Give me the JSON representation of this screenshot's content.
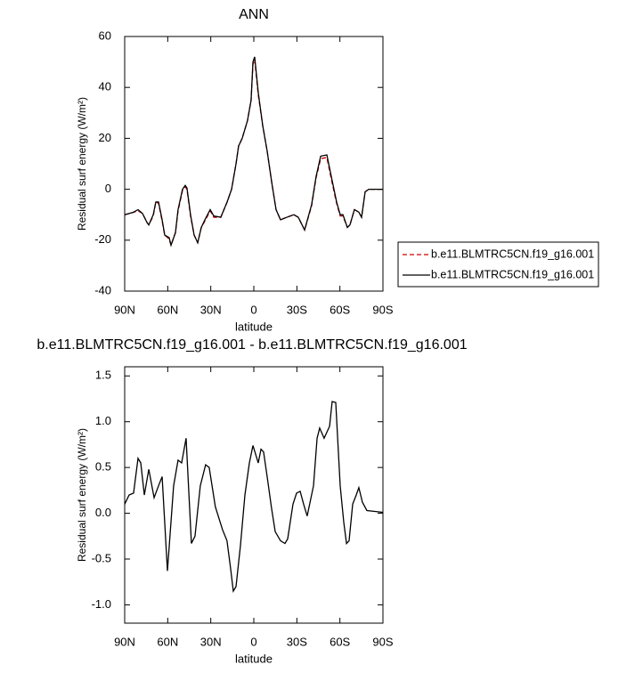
{
  "chart_data": [
    {
      "type": "line",
      "title": "ANN",
      "xlabel": "latitude",
      "ylabel": "Residual surf energy (W/m²)",
      "x": [
        90,
        83.8,
        80.7,
        77.6,
        74.5,
        73.2,
        70.1,
        68.3,
        66.4,
        63.9,
        62.1,
        59,
        57.7,
        54.6,
        52.8,
        49.7,
        47.8,
        46.6,
        44.1,
        41.6,
        39.1,
        36.6,
        34.1,
        30.4,
        27.9,
        23,
        18.6,
        15.5,
        12.4,
        10.6,
        8.1,
        4.4,
        1.9,
        0.6,
        -0.6,
        -3.1,
        -6.2,
        -9.3,
        -12.4,
        -15.5,
        -18.6,
        -23,
        -27.9,
        -31,
        -35.4,
        -40.3,
        -43.4,
        -46.6,
        -50.9,
        -54,
        -57.7,
        -60.2,
        -62.1,
        -65.2,
        -67,
        -70.1,
        -73.2,
        -75.1,
        -77.6,
        -80.1,
        -90
      ],
      "series": [
        {
          "name": "b.e11.BLMTRC5CN.f19_g16.001",
          "color": "#cc0000",
          "dash": true,
          "values": [
            -10,
            -9,
            -8.5,
            -9.5,
            -13,
            -14,
            -10.5,
            -5,
            -5.5,
            -12.5,
            -18,
            -19.5,
            -22,
            -17,
            -8.5,
            -0.5,
            1,
            0,
            -10.5,
            -18,
            -21,
            -15,
            -12.5,
            -8.5,
            -11,
            -11,
            -5,
            0,
            10,
            17,
            20,
            27,
            35,
            49,
            51,
            37,
            25,
            15,
            3,
            -8,
            -12,
            -11,
            -10,
            -11,
            -16,
            -6.5,
            4.5,
            12,
            12.5,
            4,
            -5.5,
            -10.5,
            -10.5,
            -15,
            -14,
            -8,
            -9,
            -11,
            -1,
            0,
            0
          ]
        },
        {
          "name": "b.e11.BLMTRC5CN.f19_g16.001",
          "color": "#000000",
          "dash": false,
          "values": [
            -10,
            -9,
            -8,
            -9.5,
            -13,
            -14,
            -10,
            -5,
            -5,
            -12,
            -18,
            -19,
            -22,
            -17,
            -8,
            0,
            1.5,
            0.5,
            -10,
            -18,
            -21,
            -15,
            -12,
            -8,
            -10.5,
            -11,
            -5,
            0,
            10,
            17,
            20,
            27,
            35,
            50,
            52,
            38,
            25,
            15,
            3,
            -8,
            -12,
            -11,
            -10,
            -11,
            -16,
            -6,
            5,
            13,
            13.5,
            5,
            -5,
            -10,
            -10,
            -15,
            -14,
            -8,
            -9,
            -11,
            -1,
            0,
            0
          ]
        }
      ],
      "xlim": [
        90,
        -90
      ],
      "xticks": [
        {
          "value": 90,
          "label": "90N"
        },
        {
          "value": 60,
          "label": "60N"
        },
        {
          "value": 30,
          "label": "30N"
        },
        0,
        {
          "value": -30,
          "label": "30S"
        },
        {
          "value": -60,
          "label": "60S"
        },
        {
          "value": -90,
          "label": "90S"
        }
      ],
      "ylim": [
        -40,
        60
      ],
      "yticks": [
        -40,
        -20,
        0,
        20,
        40,
        60
      ],
      "legend": "right"
    },
    {
      "type": "line",
      "title": "b.e11.BLMTRC5CN.f19_g16.001 - b.e11.BLMTRC5CN.f19_g16.001",
      "xlabel": "latitude",
      "ylabel": "Residual surf energy (W/m²)",
      "x": [
        90,
        86.9,
        83.8,
        80.7,
        78.8,
        76.3,
        73.2,
        69.5,
        66.4,
        63.9,
        60.2,
        55.9,
        52.8,
        50.3,
        47.2,
        43.5,
        41,
        37.3,
        33.6,
        31.1,
        26.8,
        21.8,
        18.7,
        16.2,
        14.3,
        12.4,
        9.3,
        6.2,
        3.1,
        0.6,
        -3.1,
        -5,
        -6.8,
        -9.3,
        -12.4,
        -14.9,
        -18.6,
        -21.7,
        -23.6,
        -27.3,
        -29.8,
        -32.3,
        -34.7,
        -37.2,
        -41.6,
        -44.1,
        -45.9,
        -49,
        -52.8,
        -54.6,
        -57.1,
        -60.2,
        -62.7,
        -64.6,
        -66.4,
        -68.9,
        -71.4,
        -73.2,
        -75.7,
        -78.8,
        -90
      ],
      "series": [
        {
          "color": "#000000",
          "values": [
            0.1,
            0.2,
            0.22,
            0.6,
            0.55,
            0.2,
            0.48,
            0.17,
            0.3,
            0.4,
            -0.63,
            0.3,
            0.58,
            0.55,
            0.82,
            -0.33,
            -0.25,
            0.3,
            0.53,
            0.5,
            0.07,
            -0.18,
            -0.3,
            -0.6,
            -0.85,
            -0.8,
            -0.35,
            0.2,
            0.55,
            0.74,
            0.55,
            0.7,
            0.67,
            0.4,
            0.05,
            -0.2,
            -0.3,
            -0.33,
            -0.28,
            0.1,
            0.22,
            0.24,
            0.1,
            -0.03,
            0.3,
            0.82,
            0.93,
            0.82,
            0.95,
            1.22,
            1.21,
            0.3,
            -0.1,
            -0.33,
            -0.3,
            0.1,
            0.2,
            0.28,
            0.12,
            0.03,
            0.01
          ]
        }
      ],
      "xlim": [
        90,
        -90
      ],
      "xticks": [
        {
          "value": 90,
          "label": "90N"
        },
        {
          "value": 60,
          "label": "60N"
        },
        {
          "value": 30,
          "label": "30N"
        },
        0,
        {
          "value": -30,
          "label": "30S"
        },
        {
          "value": -60,
          "label": "60S"
        },
        {
          "value": -90,
          "label": "90S"
        }
      ],
      "ylim": [
        -1.2,
        1.6
      ],
      "yticks": [
        {
          "value": -1,
          "label": "-1.0"
        },
        -0.5,
        {
          "value": 0,
          "label": "0.0"
        },
        0.5,
        {
          "value": 1,
          "label": "1.0"
        },
        1.5
      ]
    }
  ]
}
